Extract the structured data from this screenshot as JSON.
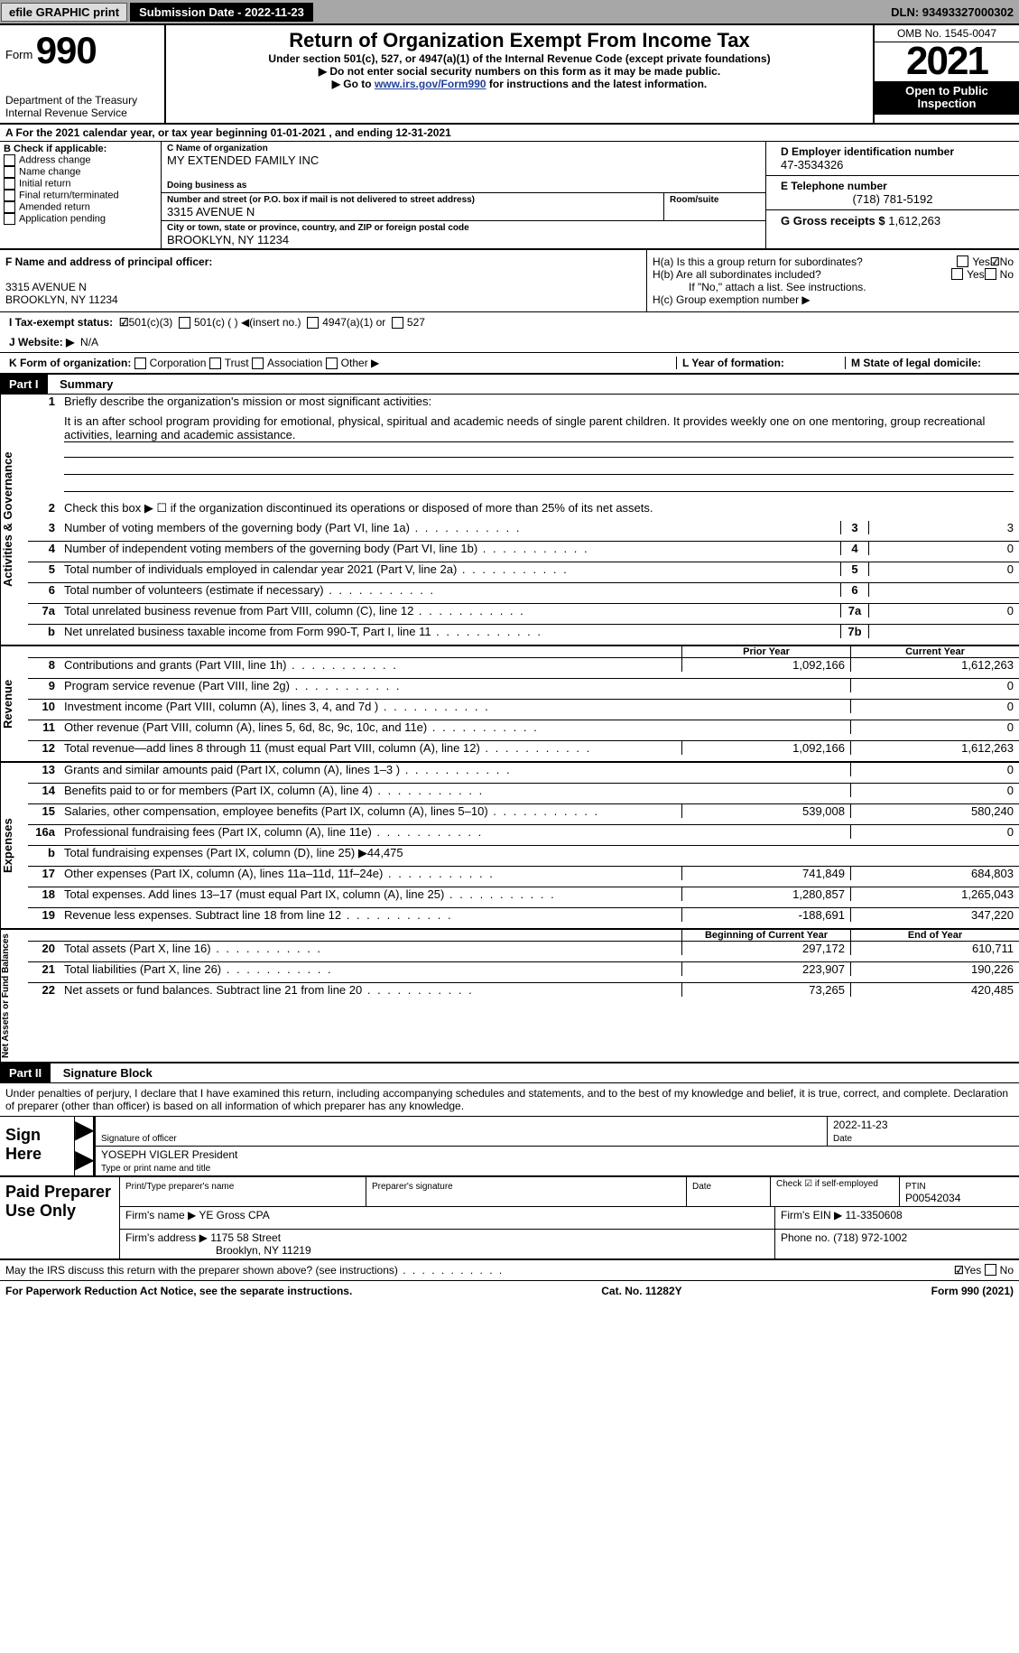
{
  "top_bar": {
    "efile": "efile GRAPHIC print",
    "submission": "Submission Date - 2022-11-23",
    "dln": "DLN: 93493327000302"
  },
  "header": {
    "form_prefix": "Form",
    "form_number": "990",
    "dept": "Department of the Treasury",
    "irs": "Internal Revenue Service",
    "title": "Return of Organization Exempt From Income Tax",
    "sub": "Under section 501(c), 527, or 4947(a)(1) of the Internal Revenue Code (except private foundations)",
    "note1": "▶ Do not enter social security numbers on this form as it may be made public.",
    "note2_a": "▶ Go to ",
    "note2_link": "www.irs.gov/Form990",
    "note2_b": " for instructions and the latest information.",
    "omb": "OMB No. 1545-0047",
    "year": "2021",
    "inspect": "Open to Public Inspection"
  },
  "line_a": "A For the 2021 calendar year, or tax year beginning 01-01-2021    , and ending 12-31-2021",
  "sec_b": {
    "title": "B Check if applicable:",
    "opts": [
      "Address change",
      "Name change",
      "Initial return",
      "Final return/terminated",
      "Amended return",
      "Application pending"
    ]
  },
  "sec_c": {
    "name_lbl": "C Name of organization",
    "name": "MY EXTENDED FAMILY INC",
    "dba_lbl": "Doing business as",
    "addr_lbl": "Number and street (or P.O. box if mail is not delivered to street address)",
    "room_lbl": "Room/suite",
    "addr": "3315 AVENUE N",
    "city_lbl": "City or town, state or province, country, and ZIP or foreign postal code",
    "city": "BROOKLYN, NY  11234"
  },
  "sec_d": {
    "ein_lbl": "D Employer identification number",
    "ein": "47-3534326",
    "tel_lbl": "E Telephone number",
    "tel": "(718) 781-5192",
    "gross_lbl": "G Gross receipts $",
    "gross": "1,612,263"
  },
  "sec_f": {
    "lbl": "F Name and address of principal officer:",
    "addr1": "3315 AVENUE N",
    "addr2": "BROOKLYN, NY  11234"
  },
  "sec_h": {
    "a": "H(a)  Is this a group return for subordinates?",
    "b": "H(b)  Are all subordinates included?",
    "ifno": "If \"No,\" attach a list. See instructions.",
    "c": "H(c)  Group exemption number ▶",
    "yes": "Yes",
    "no": "No"
  },
  "row_i": {
    "lbl": "I  Tax-exempt status:",
    "o1": "501(c)(3)",
    "o2": "501(c) (  ) ◀(insert no.)",
    "o3": "4947(a)(1) or",
    "o4": "527"
  },
  "row_j": {
    "lbl": "J  Website: ▶",
    "val": "N/A"
  },
  "row_k": {
    "lbl": "K Form of organization:",
    "o1": "Corporation",
    "o2": "Trust",
    "o3": "Association",
    "o4": "Other ▶",
    "l": "L Year of formation:",
    "m": "M State of legal domicile:"
  },
  "part1": {
    "hdr": "Part I",
    "title": "Summary",
    "q1": "Briefly describe the organization's mission or most significant activities:",
    "mission": "It is an after school program providing for emotional, physical, spiritual and academic needs of single parent children. It provides weekly one on one mentoring, group recreational activities, learning and academic assistance.",
    "q2": "Check this box ▶ ☐ if the organization discontinued its operations or disposed of more than 25% of its net assets.",
    "lines": {
      "l3": {
        "d": "Number of voting members of the governing body (Part VI, line 1a)",
        "v": "3"
      },
      "l4": {
        "d": "Number of independent voting members of the governing body (Part VI, line 1b)",
        "v": "0"
      },
      "l5": {
        "d": "Total number of individuals employed in calendar year 2021 (Part V, line 2a)",
        "v": "0"
      },
      "l6": {
        "d": "Total number of volunteers (estimate if necessary)",
        "v": ""
      },
      "l7a": {
        "d": "Total unrelated business revenue from Part VIII, column (C), line 12",
        "v": "0"
      },
      "l7b": {
        "d": "Net unrelated business taxable income from Form 990-T, Part I, line 11",
        "v": ""
      }
    },
    "tab_activities": "Activities & Governance",
    "tab_revenue": "Revenue",
    "tab_expenses": "Expenses",
    "tab_net": "Net Assets or Fund Balances",
    "prior": "Prior Year",
    "current": "Current Year",
    "boy": "Beginning of Current Year",
    "eoy": "End of Year",
    "rows2": [
      {
        "n": "8",
        "d": "Contributions and grants (Part VIII, line 1h)",
        "p": "1,092,166",
        "c": "1,612,263"
      },
      {
        "n": "9",
        "d": "Program service revenue (Part VIII, line 2g)",
        "p": "",
        "c": "0"
      },
      {
        "n": "10",
        "d": "Investment income (Part VIII, column (A), lines 3, 4, and 7d )",
        "p": "",
        "c": "0"
      },
      {
        "n": "11",
        "d": "Other revenue (Part VIII, column (A), lines 5, 6d, 8c, 9c, 10c, and 11e)",
        "p": "",
        "c": "0"
      },
      {
        "n": "12",
        "d": "Total revenue—add lines 8 through 11 (must equal Part VIII, column (A), line 12)",
        "p": "1,092,166",
        "c": "1,612,263"
      }
    ],
    "rows3": [
      {
        "n": "13",
        "d": "Grants and similar amounts paid (Part IX, column (A), lines 1–3 )",
        "p": "",
        "c": "0"
      },
      {
        "n": "14",
        "d": "Benefits paid to or for members (Part IX, column (A), line 4)",
        "p": "",
        "c": "0"
      },
      {
        "n": "15",
        "d": "Salaries, other compensation, employee benefits (Part IX, column (A), lines 5–10)",
        "p": "539,008",
        "c": "580,240"
      },
      {
        "n": "16a",
        "d": "Professional fundraising fees (Part IX, column (A), line 11e)",
        "p": "",
        "c": "0"
      },
      {
        "n": "b",
        "d": "Total fundraising expenses (Part IX, column (D), line 25) ▶44,475",
        "p": "grey",
        "c": "grey"
      },
      {
        "n": "17",
        "d": "Other expenses (Part IX, column (A), lines 11a–11d, 11f–24e)",
        "p": "741,849",
        "c": "684,803"
      },
      {
        "n": "18",
        "d": "Total expenses. Add lines 13–17 (must equal Part IX, column (A), line 25)",
        "p": "1,280,857",
        "c": "1,265,043"
      },
      {
        "n": "19",
        "d": "Revenue less expenses. Subtract line 18 from line 12",
        "p": "-188,691",
        "c": "347,220"
      }
    ],
    "rows4": [
      {
        "n": "20",
        "d": "Total assets (Part X, line 16)",
        "p": "297,172",
        "c": "610,711"
      },
      {
        "n": "21",
        "d": "Total liabilities (Part X, line 26)",
        "p": "223,907",
        "c": "190,226"
      },
      {
        "n": "22",
        "d": "Net assets or fund balances. Subtract line 21 from line 20",
        "p": "73,265",
        "c": "420,485"
      }
    ]
  },
  "part2": {
    "hdr": "Part II",
    "title": "Signature Block",
    "decl": "Under penalties of perjury, I declare that I have examined this return, including accompanying schedules and statements, and to the best of my knowledge and belief, it is true, correct, and complete. Declaration of preparer (other than officer) is based on all information of which preparer has any knowledge.",
    "sign_here": "Sign Here",
    "sig_officer": "Signature of officer",
    "date": "Date",
    "sig_date": "2022-11-23",
    "print_name": "YOSEPH VIGLER  President",
    "print_lbl": "Type or print name and title",
    "paid": "Paid Preparer Use Only",
    "pt_name_lbl": "Print/Type preparer's name",
    "pt_sig_lbl": "Preparer's signature",
    "pt_date_lbl": "Date",
    "pt_check": "Check ☑ if self-employed",
    "ptin_lbl": "PTIN",
    "ptin": "P00542034",
    "firm_lbl": "Firm's name   ▶",
    "firm": "YE Gross CPA",
    "fein_lbl": "Firm's EIN ▶",
    "fein": "11-3350608",
    "faddr_lbl": "Firm's address ▶",
    "faddr": "1175 58 Street",
    "faddr2": "Brooklyn, NY  11219",
    "fphone_lbl": "Phone no.",
    "fphone": "(718) 972-1002",
    "discuss": "May the IRS discuss this return with the preparer shown above? (see instructions)",
    "notice": "For Paperwork Reduction Act Notice, see the separate instructions.",
    "cat": "Cat. No. 11282Y",
    "form": "Form 990 (2021)"
  }
}
